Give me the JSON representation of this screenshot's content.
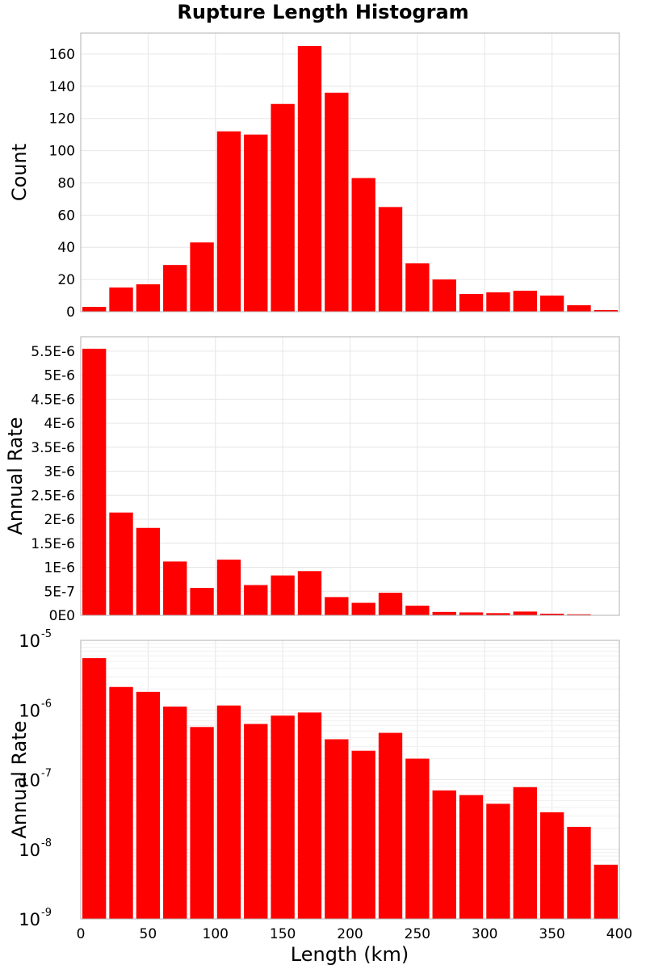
{
  "chart_data": {
    "type": "bar",
    "title": "Rupture Length Histogram",
    "xlabel": "Length (km)",
    "xlim": [
      0,
      400
    ],
    "x_ticks": [
      0,
      50,
      100,
      150,
      200,
      250,
      300,
      350,
      400
    ],
    "bin_width": 20,
    "bin_centers": [
      10,
      30,
      50,
      70,
      90,
      110,
      130,
      150,
      170,
      190,
      210,
      230,
      250,
      270,
      290,
      310,
      330,
      350,
      370,
      390
    ],
    "panels": [
      {
        "ylabel": "Count",
        "scale": "linear",
        "ylim": [
          0,
          173
        ],
        "y_ticks": [
          0,
          20,
          40,
          60,
          80,
          100,
          120,
          140,
          160
        ],
        "y_tick_labels": [
          "0",
          "20",
          "40",
          "60",
          "80",
          "100",
          "120",
          "140",
          "160"
        ],
        "values": [
          3,
          15,
          17,
          29,
          43,
          112,
          110,
          129,
          165,
          136,
          83,
          65,
          30,
          20,
          11,
          12,
          13,
          10,
          4,
          1
        ]
      },
      {
        "ylabel": "Annual Rate",
        "scale": "linear",
        "ylim": [
          0,
          5.8e-06
        ],
        "y_ticks": [
          0,
          5e-07,
          1e-06,
          1.5e-06,
          2e-06,
          2.5e-06,
          3e-06,
          3.5e-06,
          4e-06,
          4.5e-06,
          5e-06,
          5.5e-06
        ],
        "y_tick_labels": [
          "0E0",
          "5E-7",
          "1E-6",
          "1.5E-6",
          "2E-6",
          "2.5E-6",
          "3E-6",
          "3.5E-6",
          "4E-6",
          "4.5E-6",
          "5E-6",
          "5.5E-6"
        ],
        "values": [
          5.55e-06,
          2.14e-06,
          1.82e-06,
          1.12e-06,
          5.7e-07,
          1.16e-06,
          6.3e-07,
          8.3e-07,
          9.2e-07,
          3.8e-07,
          2.6e-07,
          4.7e-07,
          2e-07,
          7e-08,
          6e-08,
          4.5e-08,
          7.8e-08,
          3.4e-08,
          2.1e-08,
          6e-09
        ]
      },
      {
        "ylabel": "Annual Rate",
        "scale": "log",
        "ylim": [
          1e-09,
          1e-05
        ],
        "y_ticks_exp": [
          -9,
          -8,
          -7,
          -6,
          -5
        ],
        "y_tick_base": "10",
        "values": [
          5.55e-06,
          2.14e-06,
          1.82e-06,
          1.12e-06,
          5.7e-07,
          1.16e-06,
          6.3e-07,
          8.3e-07,
          9.2e-07,
          3.8e-07,
          2.6e-07,
          4.7e-07,
          2e-07,
          7e-08,
          6e-08,
          4.5e-08,
          7.8e-08,
          3.4e-08,
          2.1e-08,
          6e-09
        ]
      }
    ],
    "grid": true,
    "colors": {
      "bar": "#ff0000",
      "frame": "#b0b0b0",
      "grid": "#e6e6e6"
    }
  }
}
